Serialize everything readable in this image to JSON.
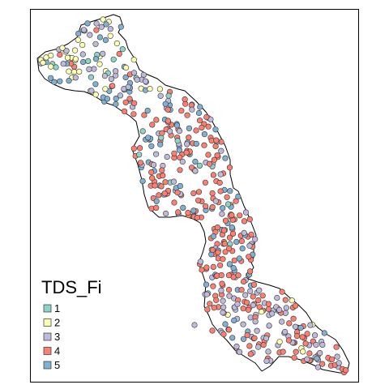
{
  "legend": {
    "title": "TDS_Fi",
    "classes": [
      {
        "label": "1",
        "color": "#8DD3C7"
      },
      {
        "label": "2",
        "color": "#FFFFB3"
      },
      {
        "label": "3",
        "color": "#BEBADA"
      },
      {
        "label": "4",
        "color": "#FB8072"
      },
      {
        "label": "5",
        "color": "#80B1D3"
      }
    ]
  },
  "map": {
    "type": "point-map",
    "frame": true,
    "classified_variable": "TDS_Fi",
    "legend_position": "bottom-left"
  }
}
